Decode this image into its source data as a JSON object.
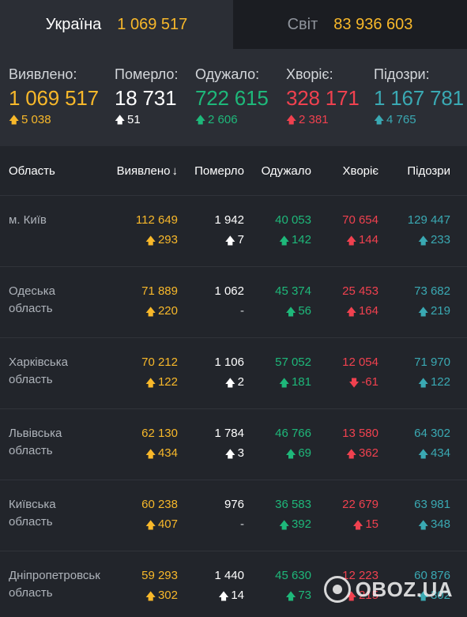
{
  "tabs": [
    {
      "label": "Україна",
      "value": "1 069 517"
    },
    {
      "label": "Світ",
      "value": "83 936 603"
    }
  ],
  "summary": [
    {
      "label": "Виявлено:",
      "value": "1 069 517",
      "delta": "5 038",
      "color": "#f8b82a"
    },
    {
      "label": "Померло:",
      "value": "18 731",
      "delta": "51",
      "color": "#ffffff"
    },
    {
      "label": "Одужало:",
      "value": "722 615",
      "delta": "2 606",
      "color": "#1eb87a"
    },
    {
      "label": "Хворіє:",
      "value": "328 171",
      "delta": "2 381",
      "color": "#f0414f"
    },
    {
      "label": "Підозри:",
      "value": "1 167 781",
      "delta": "4 765",
      "color": "#3aa9b3"
    }
  ],
  "table": {
    "headers": [
      "Область",
      "Виявлено",
      "Померло",
      "Одужало",
      "Хворіє",
      "Підозри"
    ],
    "sort_icon": "arrow-down-icon",
    "rows": [
      {
        "region": "м. Київ",
        "detected": "112 649",
        "detected_d": "293",
        "died": "1 942",
        "died_d": "7",
        "recovered": "40 053",
        "recovered_d": "142",
        "sick": "70 654",
        "sick_d": "144",
        "suspect": "129 447",
        "suspect_d": "233"
      },
      {
        "region": "Одеська область",
        "detected": "71 889",
        "detected_d": "220",
        "died": "1 062",
        "died_d": "-",
        "recovered": "45 374",
        "recovered_d": "56",
        "sick": "25 453",
        "sick_d": "164",
        "suspect": "73 682",
        "suspect_d": "219"
      },
      {
        "region": "Харківська область",
        "detected": "70 212",
        "detected_d": "122",
        "died": "1 106",
        "died_d": "2",
        "recovered": "57 052",
        "recovered_d": "181",
        "sick": "12 054",
        "sick_d": "-61",
        "suspect": "71 970",
        "suspect_d": "122"
      },
      {
        "region": "Львівська область",
        "detected": "62 130",
        "detected_d": "434",
        "died": "1 784",
        "died_d": "3",
        "recovered": "46 766",
        "recovered_d": "69",
        "sick": "13 580",
        "sick_d": "362",
        "suspect": "64 302",
        "suspect_d": "434"
      },
      {
        "region": "Київська область",
        "detected": "60 238",
        "detected_d": "407",
        "died": "976",
        "died_d": "-",
        "recovered": "36 583",
        "recovered_d": "392",
        "sick": "22 679",
        "sick_d": "15",
        "suspect": "63 981",
        "suspect_d": "348"
      },
      {
        "region": "Дніпропетровськ область",
        "detected": "59 293",
        "detected_d": "302",
        "died": "1 440",
        "died_d": "14",
        "recovered": "45 630",
        "recovered_d": "73",
        "sick": "12 223",
        "sick_d": "215",
        "suspect": "60 876",
        "suspect_d": "302"
      }
    ]
  },
  "watermark": "OBOZ.UA",
  "colors": {
    "yellow": "#f8b82a",
    "white": "#ffffff",
    "green": "#1eb87a",
    "red": "#f0414f",
    "teal": "#3aa9b3"
  }
}
